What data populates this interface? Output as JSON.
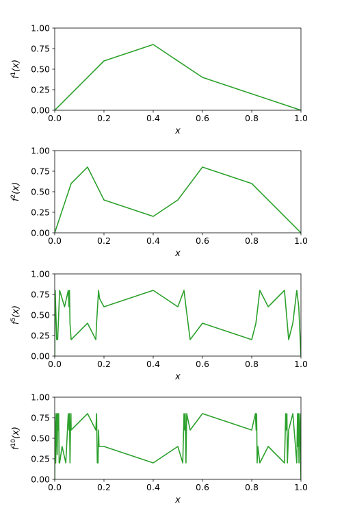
{
  "chart_data": [
    {
      "type": "line",
      "xlabel": "x",
      "ylabel_base": "f",
      "ylabel_exp": "1",
      "ylabel_arg": "(x)",
      "xlim": [
        0,
        1
      ],
      "ylim": [
        0,
        1
      ],
      "xticks": [
        "0.0",
        "0.2",
        "0.4",
        "0.6",
        "0.8",
        "1.0"
      ],
      "yticks": [
        "0.00",
        "0.25",
        "0.50",
        "0.75",
        "1.00"
      ],
      "color": "#2ca02c",
      "grid": false,
      "series": [
        {
          "x": [
            0.0,
            0.2,
            0.4,
            0.6,
            1.0
          ],
          "y": [
            0.0,
            0.6,
            0.8,
            0.4,
            0.0
          ]
        }
      ]
    },
    {
      "type": "line",
      "xlabel": "x",
      "ylabel_base": "f",
      "ylabel_exp": "2",
      "ylabel_arg": "(x)",
      "xlim": [
        0,
        1
      ],
      "ylim": [
        0,
        1
      ],
      "xticks": [
        "0.0",
        "0.2",
        "0.4",
        "0.6",
        "0.8",
        "1.0"
      ],
      "yticks": [
        "0.00",
        "0.25",
        "0.50",
        "0.75",
        "1.00"
      ],
      "color": "#2ca02c",
      "grid": false,
      "series": [
        {
          "x": [
            0.0,
            0.0667,
            0.1333,
            0.2,
            0.4,
            0.5,
            0.6,
            0.8,
            1.0
          ],
          "y": [
            0.0,
            0.6,
            0.8,
            0.4,
            0.2,
            0.4,
            0.8,
            0.6,
            0.0
          ]
        }
      ]
    },
    {
      "type": "line",
      "xlabel": "x",
      "ylabel_base": "f",
      "ylabel_exp": "5",
      "ylabel_arg": "(x)",
      "xlim": [
        0,
        1
      ],
      "ylim": [
        0,
        1
      ],
      "xticks": [
        "0.0",
        "0.2",
        "0.4",
        "0.6",
        "0.8",
        "1.0"
      ],
      "yticks": [
        "0.00",
        "0.25",
        "0.50",
        "0.75",
        "1.00"
      ],
      "color": "#2ca02c",
      "grid": false,
      "series": [
        {
          "x": [
            0.0,
            0.002,
            0.004,
            0.006,
            0.008,
            0.012,
            0.02,
            0.04,
            0.055,
            0.058,
            0.06,
            0.062,
            0.0667,
            0.1333,
            0.167,
            0.17,
            0.178,
            0.182,
            0.2,
            0.4,
            0.5,
            0.525,
            0.533,
            0.55,
            0.6,
            0.8,
            0.817,
            0.833,
            0.867,
            0.933,
            0.95,
            0.967,
            0.983,
            0.991,
            1.0
          ],
          "y": [
            0.0,
            0.8,
            0.6,
            0.4,
            0.2,
            0.2,
            0.8,
            0.6,
            0.8,
            0.6,
            0.8,
            0.4,
            0.2,
            0.4,
            0.2,
            0.4,
            0.8,
            0.7,
            0.6,
            0.8,
            0.6,
            0.8,
            0.6,
            0.2,
            0.4,
            0.2,
            0.4,
            0.8,
            0.6,
            0.8,
            0.2,
            0.4,
            0.8,
            0.6,
            0.0
          ]
        }
      ]
    },
    {
      "type": "line",
      "xlabel": "x",
      "ylabel_base": "f",
      "ylabel_exp": "10",
      "ylabel_arg": "(x)",
      "xlim": [
        0,
        1
      ],
      "ylim": [
        0,
        1
      ],
      "xticks": [
        "0.0",
        "0.2",
        "0.4",
        "0.6",
        "0.8",
        "1.0"
      ],
      "yticks": [
        "0.00",
        "0.25",
        "0.50",
        "0.75",
        "1.00"
      ],
      "color": "#2ca02c",
      "grid": false,
      "series": [
        {
          "x": [
            0.0,
            0.002,
            0.004,
            0.006,
            0.008,
            0.01,
            0.012,
            0.014,
            0.016,
            0.018,
            0.02,
            0.03,
            0.045,
            0.055,
            0.058,
            0.06,
            0.062,
            0.064,
            0.066,
            0.0667,
            0.1333,
            0.167,
            0.17,
            0.173,
            0.176,
            0.178,
            0.18,
            0.2,
            0.4,
            0.5,
            0.52,
            0.525,
            0.528,
            0.53,
            0.533,
            0.536,
            0.55,
            0.6,
            0.8,
            0.815,
            0.818,
            0.82,
            0.822,
            0.825,
            0.833,
            0.867,
            0.933,
            0.938,
            0.94,
            0.943,
            0.945,
            0.95,
            0.967,
            0.983,
            0.986,
            0.988,
            0.99,
            0.992,
            0.994,
            0.996,
            0.998,
            1.0
          ],
          "y": [
            0.0,
            0.8,
            0.2,
            0.6,
            0.8,
            0.3,
            0.8,
            0.6,
            0.8,
            0.2,
            0.2,
            0.4,
            0.2,
            0.8,
            0.6,
            0.8,
            0.2,
            0.6,
            0.8,
            0.6,
            0.8,
            0.6,
            0.8,
            0.2,
            0.2,
            0.6,
            0.4,
            0.4,
            0.2,
            0.4,
            0.2,
            0.8,
            0.6,
            0.8,
            0.2,
            0.8,
            0.6,
            0.8,
            0.6,
            0.8,
            0.6,
            0.8,
            0.2,
            0.4,
            0.2,
            0.4,
            0.2,
            0.8,
            0.6,
            0.8,
            0.2,
            0.6,
            0.8,
            0.2,
            0.8,
            0.4,
            0.8,
            0.2,
            0.6,
            0.8,
            0.4,
            0.0
          ]
        }
      ]
    }
  ]
}
